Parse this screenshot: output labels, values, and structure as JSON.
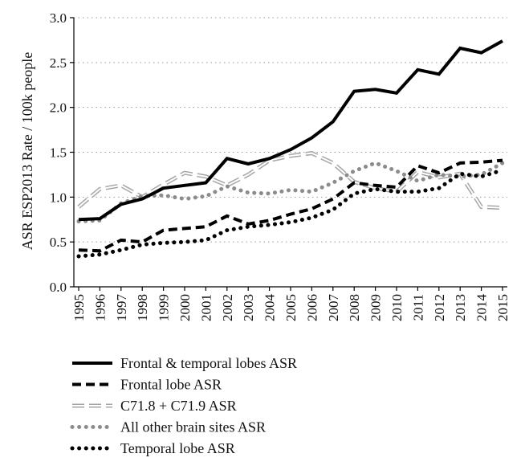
{
  "chart_data": {
    "type": "line",
    "title": "",
    "xlabel": "",
    "ylabel": "ASR ESP2013 Rate / 100k people",
    "ylim": [
      0,
      3.0
    ],
    "yticks": [
      "0.0",
      "0.5",
      "1.0",
      "1.5",
      "2.0",
      "2.5",
      "3.0"
    ],
    "grid": "horizontal dotted",
    "legend_position": "bottom",
    "categories": [
      "1995",
      "1996",
      "1997",
      "1998",
      "1999",
      "2000",
      "2001",
      "2002",
      "2003",
      "2004",
      "2005",
      "2006",
      "2007",
      "2008",
      "2009",
      "2010",
      "2011",
      "2012",
      "2013",
      "2014",
      "2015"
    ],
    "series": [
      {
        "name": "Frontal & temporal lobes ASR",
        "style": "solid",
        "color": "#000000",
        "values": [
          0.75,
          0.76,
          0.92,
          0.98,
          1.1,
          1.13,
          1.16,
          1.43,
          1.37,
          1.43,
          1.53,
          1.66,
          1.84,
          2.18,
          2.2,
          2.16,
          2.42,
          2.37,
          2.66,
          2.61,
          2.74
        ]
      },
      {
        "name": "Frontal lobe ASR",
        "style": "dashed",
        "color": "#000000",
        "values": [
          0.41,
          0.4,
          0.52,
          0.5,
          0.63,
          0.65,
          0.67,
          0.79,
          0.7,
          0.74,
          0.81,
          0.87,
          0.98,
          1.16,
          1.13,
          1.11,
          1.35,
          1.27,
          1.38,
          1.39,
          1.41
        ]
      },
      {
        "name": "C71.8 + C71.9 ASR",
        "style": "long-dash-outline",
        "color": "#a6a6a6",
        "values": [
          0.89,
          1.09,
          1.13,
          1.0,
          1.14,
          1.27,
          1.23,
          1.13,
          1.25,
          1.41,
          1.46,
          1.49,
          1.38,
          1.17,
          1.1,
          1.06,
          1.28,
          1.22,
          1.26,
          0.89,
          0.88
        ]
      },
      {
        "name": "All other brain sites ASR",
        "style": "dotted",
        "color": "#8c8c8c",
        "values": [
          0.73,
          0.74,
          0.93,
          1.01,
          1.02,
          0.98,
          1.01,
          1.12,
          1.05,
          1.04,
          1.08,
          1.06,
          1.16,
          1.29,
          1.38,
          1.29,
          1.18,
          1.25,
          1.23,
          1.25,
          1.38
        ]
      },
      {
        "name": "Temporal lobe ASR",
        "style": "dotted",
        "color": "#000000",
        "values": [
          0.34,
          0.36,
          0.41,
          0.47,
          0.49,
          0.5,
          0.52,
          0.63,
          0.67,
          0.69,
          0.72,
          0.77,
          0.86,
          1.04,
          1.09,
          1.06,
          1.06,
          1.1,
          1.26,
          1.23,
          1.3
        ]
      }
    ]
  }
}
